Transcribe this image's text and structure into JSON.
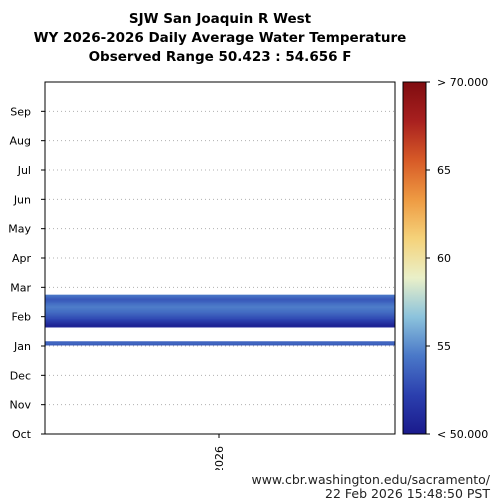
{
  "chart_data": {
    "type": "heatmap",
    "title_lines": [
      "SJW San Joaquin R West",
      "WY 2026-2026 Daily Average Water Temperature",
      "Observed Range 50.423 : 54.656 F"
    ],
    "y_tick_labels": [
      "Oct",
      "Nov",
      "Dec",
      "Jan",
      "Feb",
      "Mar",
      "Apr",
      "May",
      "Jun",
      "Jul",
      "Aug",
      "Sep"
    ],
    "x_tick_labels": [
      "2026"
    ],
    "colorbar": {
      "min": 50.0,
      "max": 70.0,
      "tick_labels": [
        {
          "value": 50,
          "label": "< 50.000"
        },
        {
          "value": 55,
          "label": "55"
        },
        {
          "value": 60,
          "label": "60"
        },
        {
          "value": 65,
          "label": "65"
        },
        {
          "value": 70,
          "label": "> 70.000"
        }
      ],
      "colors": [
        "#1a1a8c",
        "#2b3fae",
        "#4a78c8",
        "#8cc3dc",
        "#eaf0c8",
        "#f5d27a",
        "#ee9a42",
        "#d75a27",
        "#a8201f",
        "#7f0c10"
      ]
    },
    "grid": true,
    "observed_range": [
      50.423,
      54.656
    ],
    "rows": [
      {
        "date": "2026-01-02",
        "value": 53.2
      },
      {
        "date": "2026-01-03",
        "value": 53.5
      },
      {
        "date": "2026-01-04",
        "value": 53.9
      },
      {
        "date": "2026-01-05",
        "value": 53.6
      },
      {
        "date": "2026-01-21",
        "value": 50.8
      },
      {
        "date": "2026-01-22",
        "value": 50.6
      },
      {
        "date": "2026-01-23",
        "value": 50.7
      },
      {
        "date": "2026-01-24",
        "value": 51.0
      },
      {
        "date": "2026-01-25",
        "value": 51.3
      },
      {
        "date": "2026-01-26",
        "value": 51.6
      },
      {
        "date": "2026-01-27",
        "value": 51.9
      },
      {
        "date": "2026-01-28",
        "value": 52.2
      },
      {
        "date": "2026-01-29",
        "value": 52.4
      },
      {
        "date": "2026-01-30",
        "value": 52.7
      },
      {
        "date": "2026-01-31",
        "value": 52.9
      },
      {
        "date": "2026-02-01",
        "value": 53.1
      },
      {
        "date": "2026-02-02",
        "value": 53.3
      },
      {
        "date": "2026-02-03",
        "value": 53.5
      },
      {
        "date": "2026-02-04",
        "value": 53.7
      },
      {
        "date": "2026-02-05",
        "value": 53.9
      },
      {
        "date": "2026-02-06",
        "value": 54.1
      },
      {
        "date": "2026-02-07",
        "value": 54.2
      },
      {
        "date": "2026-02-08",
        "value": 54.4
      },
      {
        "date": "2026-02-09",
        "value": 54.5
      },
      {
        "date": "2026-02-10",
        "value": 54.6
      },
      {
        "date": "2026-02-11",
        "value": 54.5
      },
      {
        "date": "2026-02-12",
        "value": 54.3
      },
      {
        "date": "2026-02-13",
        "value": 54.1
      },
      {
        "date": "2026-02-14",
        "value": 53.9
      },
      {
        "date": "2026-02-15",
        "value": 53.6
      },
      {
        "date": "2026-02-16",
        "value": 53.4
      },
      {
        "date": "2026-02-17",
        "value": 53.2
      },
      {
        "date": "2026-02-18",
        "value": 53.4
      },
      {
        "date": "2026-02-19",
        "value": 53.7
      },
      {
        "date": "2026-02-20",
        "value": 54.0
      },
      {
        "date": "2026-02-21",
        "value": 54.3
      }
    ]
  },
  "footer": {
    "url": "www.cbr.washington.edu/sacramento/",
    "timestamp": "22 Feb 2026 15:48:50 PST"
  }
}
